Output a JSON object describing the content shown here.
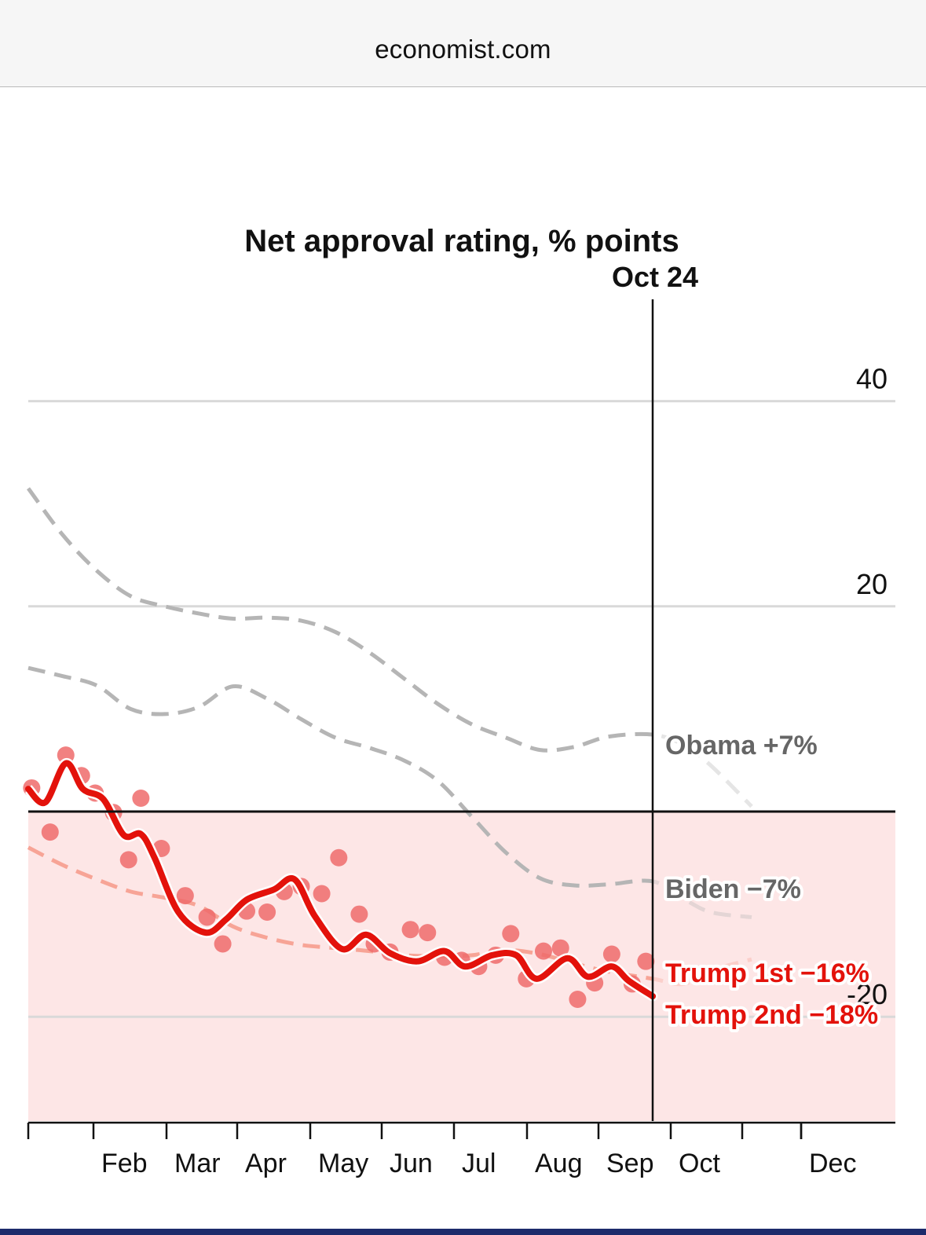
{
  "browser": {
    "url": "economist.com"
  },
  "colors": {
    "trump2": "#e3120b",
    "trump2_dots": "#ee6b6b",
    "trump1": "#f7a496",
    "gray_line": "#b5b5b5",
    "gray_label": "#666666",
    "negative_fill": "#fde6e6",
    "bottom_bar": "#1d2b6b"
  },
  "chart_data": {
    "type": "line",
    "title": "Net approval rating, % points",
    "xlabel": "",
    "ylabel": "",
    "ylim": [
      -30,
      50
    ],
    "yticks": [
      40,
      20,
      0,
      -20
    ],
    "ytick_labels": [
      "40",
      "20",
      "",
      "-20"
    ],
    "grid": true,
    "x_unit": "months since Jan 20 (inauguration)",
    "xlim": [
      0,
      11.4
    ],
    "xticks": [
      {
        "pos": 0.0,
        "label": ""
      },
      {
        "pos": 0.4,
        "label": "Feb"
      },
      {
        "pos": 1.4,
        "label": "Mar"
      },
      {
        "pos": 2.4,
        "label": "Apr"
      },
      {
        "pos": 3.4,
        "label": "May"
      },
      {
        "pos": 4.4,
        "label": "Jun"
      },
      {
        "pos": 5.4,
        "label": "Jul"
      },
      {
        "pos": 6.4,
        "label": "Aug"
      },
      {
        "pos": 7.4,
        "label": "Sep"
      },
      {
        "pos": 8.4,
        "label": "Oct"
      },
      {
        "pos": 9.4,
        "label": ""
      },
      {
        "pos": 10.4,
        "label": "Dec"
      }
    ],
    "xtick_month_labels": [
      "Feb",
      "Mar",
      "Apr",
      "May",
      "Jun",
      "Jul",
      "Aug",
      "Sep",
      "Oct",
      "Dec"
    ],
    "current_marker": {
      "label": "Oct 24",
      "pos": 9.15
    },
    "negative_region": {
      "from": 0,
      "to": -30
    },
    "series": [
      {
        "name": "Obama",
        "label": "Obama +7%",
        "style": "dashed-gray",
        "final_value": 7,
        "x": [
          0,
          0.5,
          1.0,
          1.5,
          2.0,
          2.5,
          3.0,
          3.5,
          4.0,
          4.5,
          5.0,
          5.5,
          6.0,
          6.5,
          7.0,
          7.5,
          8.0,
          8.5,
          9.15,
          9.6,
          10.0,
          10.6
        ],
        "values": [
          31.5,
          27,
          23.5,
          21,
          20,
          19.3,
          18.8,
          18.9,
          18.6,
          17.5,
          15.5,
          13,
          10.5,
          8.5,
          7.2,
          6.0,
          6.3,
          7.3,
          7.5,
          6.5,
          4.5,
          0.5
        ]
      },
      {
        "name": "Biden",
        "label": "Biden −7%",
        "style": "dashed-gray",
        "final_value": -7,
        "x": [
          0,
          0.5,
          1.0,
          1.5,
          2.0,
          2.5,
          3.0,
          3.5,
          4.0,
          4.5,
          5.0,
          5.5,
          6.0,
          6.5,
          7.0,
          7.5,
          8.0,
          8.5,
          9.15,
          9.6,
          10.0,
          10.6
        ],
        "values": [
          14,
          13.2,
          12.3,
          10,
          9.5,
          10.2,
          12.2,
          11,
          9,
          7.2,
          6.2,
          5,
          3,
          -0.5,
          -4,
          -6.5,
          -7.2,
          -7.1,
          -6.8,
          -8.5,
          -9.8,
          -10.3
        ]
      },
      {
        "name": "Trump 1st",
        "label": "Trump 1st  −16%",
        "style": "dashed-salmon",
        "final_value": -16,
        "x": [
          0,
          0.5,
          1.0,
          1.5,
          2.0,
          2.5,
          3.0,
          3.5,
          4.0,
          4.5,
          5.0,
          5.5,
          6.0,
          6.5,
          7.0,
          7.5,
          8.0,
          8.5,
          9.15,
          9.6,
          10.0,
          10.6
        ],
        "values": [
          -3.5,
          -5.2,
          -6.6,
          -7.8,
          -8.4,
          -9.2,
          -11.2,
          -12.3,
          -13,
          -13.3,
          -13.6,
          -14,
          -14.1,
          -14,
          -13.5,
          -13.9,
          -14.8,
          -15.6,
          -16.3,
          -16.8,
          -15.5,
          -14.4
        ]
      },
      {
        "name": "Trump 2nd",
        "label": "Trump 2nd  −18%",
        "style": "solid-red",
        "final_value": -18,
        "x": [
          0,
          0.25,
          0.55,
          0.8,
          1.1,
          1.4,
          1.65,
          1.85,
          2.2,
          2.6,
          2.9,
          3.2,
          3.6,
          3.9,
          4.2,
          4.6,
          4.95,
          5.3,
          5.7,
          6.1,
          6.4,
          6.8,
          7.15,
          7.45,
          7.9,
          8.2,
          8.55,
          8.8,
          9.15
        ],
        "values": [
          2.2,
          0.9,
          4.7,
          2.2,
          1.2,
          -2.3,
          -2.2,
          -4.5,
          -9.8,
          -11.8,
          -10.5,
          -8.6,
          -7.6,
          -6.6,
          -10.2,
          -13.4,
          -12.0,
          -13.8,
          -14.6,
          -13.6,
          -15.1,
          -14.0,
          -14.0,
          -16.3,
          -14.3,
          -16.1,
          -15.1,
          -16.5,
          -18.0
        ]
      },
      {
        "name": "Trump 2nd polls",
        "style": "dots",
        "x": [
          0.05,
          0.32,
          0.55,
          0.78,
          0.98,
          1.25,
          1.47,
          1.65,
          1.95,
          2.3,
          2.62,
          2.85,
          3.2,
          3.5,
          3.75,
          4.0,
          4.3,
          4.55,
          4.85,
          5.07,
          5.3,
          5.6,
          5.85,
          6.1,
          6.35,
          6.6,
          6.85,
          7.07,
          7.3,
          7.55,
          7.8,
          8.05,
          8.3,
          8.55,
          8.85,
          9.05
        ],
        "values": [
          2.3,
          -2.0,
          5.5,
          3.5,
          1.8,
          -0.1,
          -4.7,
          1.3,
          -3.6,
          -8.2,
          -10.3,
          -12.9,
          -9.7,
          -9.8,
          -7.8,
          -7.3,
          -8.0,
          -4.5,
          -10.0,
          -12.9,
          -13.7,
          -11.5,
          -11.8,
          -14.2,
          -14.5,
          -15.1,
          -14.0,
          -11.9,
          -16.3,
          -13.6,
          -13.3,
          -18.3,
          -16.7,
          -13.9,
          -16.8,
          -14.6
        ]
      }
    ]
  }
}
